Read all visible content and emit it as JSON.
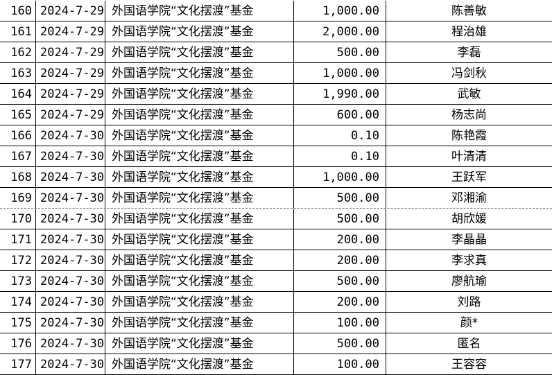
{
  "rows": [
    {
      "no": "160",
      "date": "2024-7-29",
      "fund": "外国语学院“文化摆渡”基金",
      "amount": "1,000.00",
      "name": "陈善敏"
    },
    {
      "no": "161",
      "date": "2024-7-29",
      "fund": "外国语学院“文化摆渡”基金",
      "amount": "2,000.00",
      "name": "程治雄"
    },
    {
      "no": "162",
      "date": "2024-7-29",
      "fund": "外国语学院“文化摆渡”基金",
      "amount": "500.00",
      "name": "李磊"
    },
    {
      "no": "163",
      "date": "2024-7-29",
      "fund": "外国语学院“文化摆渡”基金",
      "amount": "1,000.00",
      "name": "冯剑秋"
    },
    {
      "no": "164",
      "date": "2024-7-29",
      "fund": "外国语学院“文化摆渡”基金",
      "amount": "1,990.00",
      "name": "武敏"
    },
    {
      "no": "165",
      "date": "2024-7-29",
      "fund": "外国语学院“文化摆渡”基金",
      "amount": "600.00",
      "name": "杨志尚"
    },
    {
      "no": "166",
      "date": "2024-7-30",
      "fund": "外国语学院“文化摆渡”基金",
      "amount": "0.10",
      "name": "陈艳霞"
    },
    {
      "no": "167",
      "date": "2024-7-30",
      "fund": "外国语学院“文化摆渡”基金",
      "amount": "0.10",
      "name": "叶清清"
    },
    {
      "no": "168",
      "date": "2024-7-30",
      "fund": "外国语学院“文化摆渡”基金",
      "amount": "1,000.00",
      "name": "王跃军"
    },
    {
      "no": "169",
      "date": "2024-7-30",
      "fund": "外国语学院“文化摆渡”基金",
      "amount": "500.00",
      "name": "邓湘渝"
    },
    {
      "no": "170",
      "date": "2024-7-30",
      "fund": "外国语学院“文化摆渡”基金",
      "amount": "500.00",
      "name": "胡欣媛"
    },
    {
      "no": "171",
      "date": "2024-7-30",
      "fund": "外国语学院“文化摆渡”基金",
      "amount": "200.00",
      "name": "李晶晶"
    },
    {
      "no": "172",
      "date": "2024-7-30",
      "fund": "外国语学院“文化摆渡”基金",
      "amount": "200.00",
      "name": "李求真"
    },
    {
      "no": "173",
      "date": "2024-7-30",
      "fund": "外国语学院“文化摆渡”基金",
      "amount": "500.00",
      "name": "廖航瑜"
    },
    {
      "no": "174",
      "date": "2024-7-30",
      "fund": "外国语学院“文化摆渡”基金",
      "amount": "200.00",
      "name": "刘路"
    },
    {
      "no": "175",
      "date": "2024-7-30",
      "fund": "外国语学院“文化摆渡”基金",
      "amount": "100.00",
      "name": "颜*"
    },
    {
      "no": "176",
      "date": "2024-7-30",
      "fund": "外国语学院“文化摆渡”基金",
      "amount": "500.00",
      "name": "匿名"
    },
    {
      "no": "177",
      "date": "2024-7-30",
      "fund": "外国语学院“文化摆渡”基金",
      "amount": "100.00",
      "name": "王容容"
    }
  ]
}
